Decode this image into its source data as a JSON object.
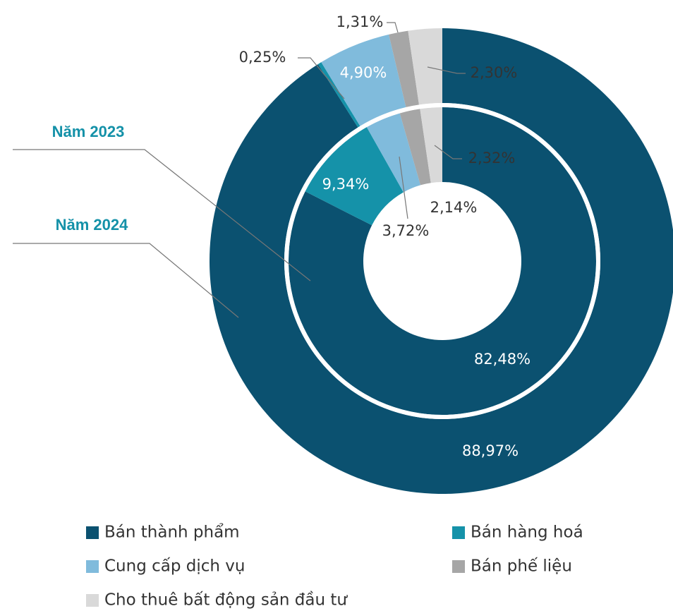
{
  "chart_data": {
    "type": "donut",
    "categories": [
      "Bán thành phẩm",
      "Bán hàng hoá",
      "Cung cấp dịch vụ",
      "Bán phế liệu",
      "Cho thuê bất động sản đầu tư"
    ],
    "colors": [
      "#0b5170",
      "#1592a9",
      "#80bbdc",
      "#a6a6a6",
      "#d9d9d9"
    ],
    "series": [
      {
        "name": "Năm 2023",
        "values": [
          82.48,
          9.34,
          3.72,
          2.14,
          2.32
        ],
        "value_labels": [
          "82,48%",
          "9,34%",
          "3,72%",
          "2,14%",
          "2,32%"
        ]
      },
      {
        "name": "Năm 2024",
        "values": [
          88.97,
          0.25,
          4.9,
          1.31,
          2.3
        ],
        "value_labels": [
          "88,97%",
          "0,25%",
          "4,90%",
          "1,31%",
          "2,30%"
        ]
      }
    ]
  }
}
